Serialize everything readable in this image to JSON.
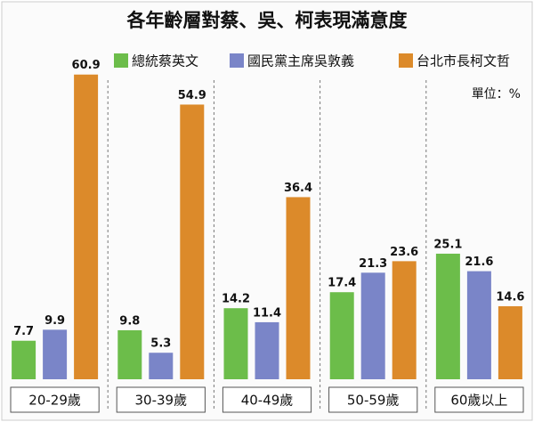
{
  "chart_data": {
    "type": "bar",
    "title": "各年齡層對蔡、吳、柯表現滿意度",
    "unit": "單位：%",
    "categories": [
      "20-29歲",
      "30-39歲",
      "40-49歲",
      "50-59歲",
      "60歲以上"
    ],
    "series": [
      {
        "name": "總統蔡英文",
        "color": "#6cbd4a",
        "values": [
          7.7,
          9.8,
          14.2,
          17.4,
          25.1
        ]
      },
      {
        "name": "國民黨主席吳敦義",
        "color": "#7a85c8",
        "values": [
          9.9,
          5.3,
          11.4,
          21.3,
          21.6
        ]
      },
      {
        "name": "台北市長柯文哲",
        "color": "#dc8a2a",
        "values": [
          60.9,
          54.9,
          36.4,
          23.6,
          14.6
        ]
      }
    ]
  }
}
